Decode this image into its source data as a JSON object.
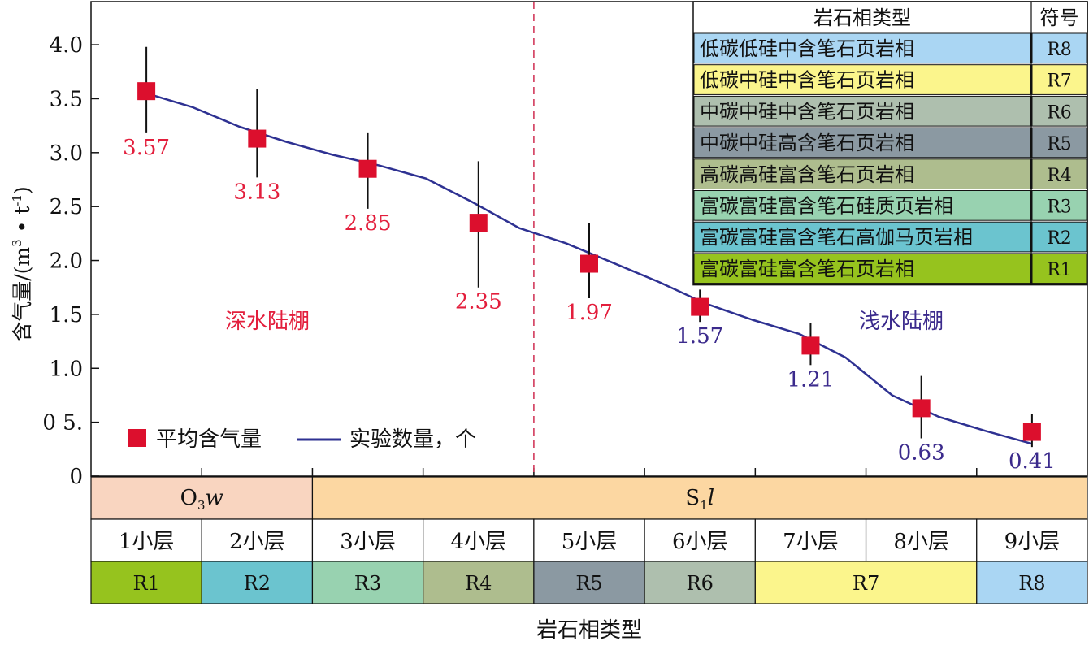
{
  "chart_data": {
    "type": "scatter",
    "ylabel_main": "含气量/(m",
    "ylabel_sup1": "3",
    "ylabel_mid": " • t",
    "ylabel_sup2": "-1",
    "ylabel_end": ")",
    "xlabel": "岩石相类型",
    "ylim": [
      0,
      4.4
    ],
    "y_ticks": [
      {
        "value": 0,
        "label": "0"
      },
      {
        "value": 0.5,
        "label": "0 5."
      },
      {
        "value": 1.0,
        "label": "1.0"
      },
      {
        "value": 1.5,
        "label": "1.5"
      },
      {
        "value": 2.0,
        "label": "2.0"
      },
      {
        "value": 2.5,
        "label": "2.5"
      },
      {
        "value": 3.0,
        "label": "3.0"
      },
      {
        "value": 3.5,
        "label": "3.5"
      },
      {
        "value": 4.0,
        "label": "4.0"
      }
    ],
    "categories": [
      "1小层",
      "2小层",
      "3小层",
      "4小层",
      "5小层",
      "6小层",
      "7小层",
      "8小层",
      "9小层"
    ],
    "points": [
      {
        "layer": "1小层",
        "value": 3.57,
        "label": "3.57",
        "err_low": 3.18,
        "err_high": 3.98,
        "zone": "deep"
      },
      {
        "layer": "2小层",
        "value": 3.13,
        "label": "3.13",
        "err_low": 2.77,
        "err_high": 3.59,
        "zone": "deep"
      },
      {
        "layer": "3小层",
        "value": 2.85,
        "label": "2.85",
        "err_low": 2.48,
        "err_high": 3.18,
        "zone": "deep"
      },
      {
        "layer": "4小层",
        "value": 2.35,
        "label": "2.35",
        "err_low": 1.75,
        "err_high": 2.92,
        "zone": "deep"
      },
      {
        "layer": "5小层",
        "value": 1.97,
        "label": "1.97",
        "err_low": 1.65,
        "err_high": 2.35,
        "zone": "deep"
      },
      {
        "layer": "6小层",
        "value": 1.57,
        "label": "1.57",
        "err_low": 1.43,
        "err_high": 1.73,
        "zone": "shallow"
      },
      {
        "layer": "7小层",
        "value": 1.21,
        "label": "1.21",
        "err_low": 1.03,
        "err_high": 1.42,
        "zone": "shallow"
      },
      {
        "layer": "8小层",
        "value": 0.63,
        "label": "0.63",
        "err_low": 0.35,
        "err_high": 0.93,
        "zone": "shallow"
      },
      {
        "layer": "9小层",
        "value": 0.41,
        "label": "0.41",
        "err_low": 0.27,
        "err_high": 0.58,
        "zone": "shallow"
      }
    ],
    "line_series": {
      "name": "实验数量，个",
      "values": [
        3.55,
        3.42,
        3.24,
        3.1,
        2.98,
        2.88,
        2.76,
        2.54,
        2.3,
        2.16,
        1.98,
        1.8,
        1.6,
        1.45,
        1.32,
        1.1,
        0.75,
        0.55,
        0.42,
        0.3
      ]
    },
    "legend": {
      "marker_label": "平均含气量",
      "line_label": "实验数量，个",
      "position": "bottom-left"
    },
    "zones": {
      "deep": "深水陆棚",
      "shallow": "浅水陆棚"
    },
    "formation_bar": {
      "o3w": {
        "main": "O",
        "sub": "3",
        "tail": "w"
      },
      "s1l": {
        "main": "S",
        "sub": "1",
        "tail": "l"
      }
    },
    "facies_strip": [
      {
        "code": "R1",
        "span": 1
      },
      {
        "code": "R2",
        "span": 1
      },
      {
        "code": "R3",
        "span": 1
      },
      {
        "code": "R4",
        "span": 1
      },
      {
        "code": "R5",
        "span": 1
      },
      {
        "code": "R6",
        "span": 1
      },
      {
        "code": "R7",
        "span": 2
      },
      {
        "code": "R8",
        "span": 1
      }
    ],
    "facies_table": {
      "header_type": "岩石相类型",
      "header_code": "符号",
      "rows": [
        {
          "name": "低碳低硅中含笔石页岩相",
          "code": "R8"
        },
        {
          "name": "低碳中硅中含笔石页岩相",
          "code": "R7"
        },
        {
          "name": "中碳中硅中含笔石页岩相",
          "code": "R6"
        },
        {
          "name": "中碳中硅高含笔石页岩相",
          "code": "R5"
        },
        {
          "name": "高碳高硅富含笔石页岩相",
          "code": "R4"
        },
        {
          "name": "富碳富硅富含笔石硅质页岩相",
          "code": "R3"
        },
        {
          "name": "富碳富硅富含笔石高伽马页岩相",
          "code": "R2"
        },
        {
          "name": "富碳富硅富含笔石页岩相",
          "code": "R1"
        }
      ]
    },
    "colors": {
      "marker": "#dc0f2d",
      "line": "#2e3192",
      "deep_label": "#e31e3c",
      "shallow_label": "#3b2a8c",
      "divider": "#d33a5c",
      "o3w_bg": "#f9d5c0",
      "s1l_bg": "#fcd7a2",
      "R1": "#96c31e",
      "R2": "#6bc4cf",
      "R3": "#98d2b0",
      "R4": "#aebd8e",
      "R5": "#8b99a2",
      "R6": "#aebfae",
      "R7": "#fbf58c",
      "R8": "#aad6f3"
    }
  }
}
